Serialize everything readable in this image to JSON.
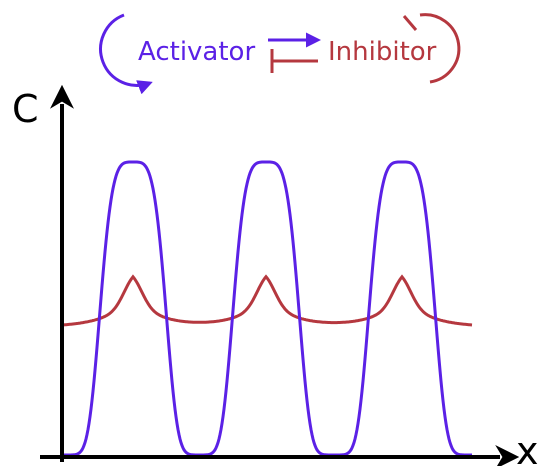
{
  "legend": {
    "activator": "Activator",
    "inhibitor": "Inhibitor"
  },
  "axes": {
    "y_label": "C",
    "x_label": "x"
  }
}
